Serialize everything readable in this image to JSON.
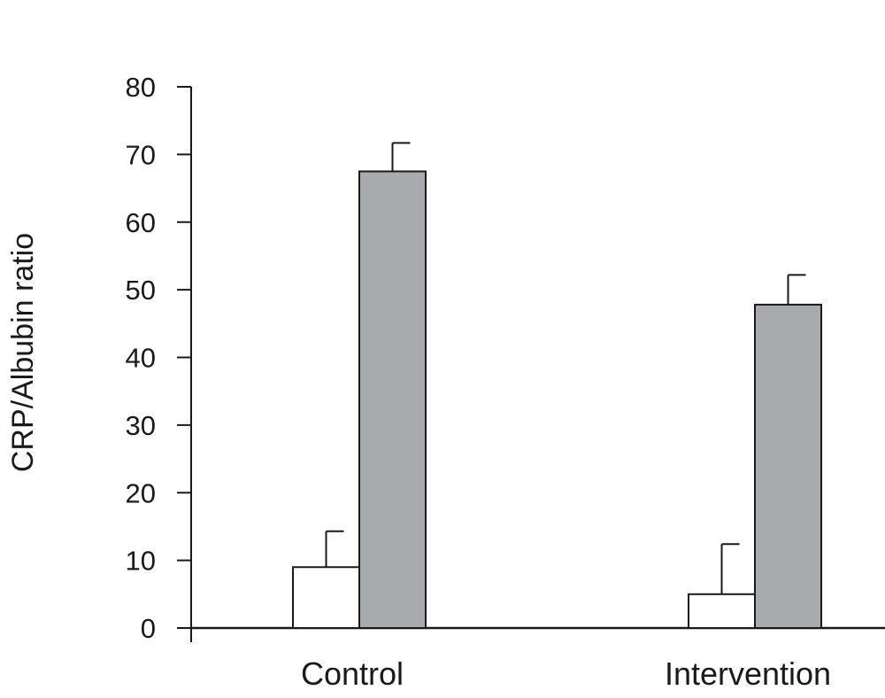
{
  "chart_data": {
    "type": "bar",
    "title": "",
    "xlabel": "",
    "ylabel": "CRP/Albubin ratio",
    "ylim": [
      0,
      80
    ],
    "yticks": [
      0,
      10,
      20,
      30,
      40,
      50,
      60,
      70,
      80
    ],
    "categories": [
      "Control",
      "Intervention"
    ],
    "grid": false,
    "legend": "none",
    "series": [
      {
        "color": "#ffffff",
        "values": [
          9,
          5
        ],
        "errors": [
          5.3,
          7.4
        ]
      },
      {
        "color": "#a9aaad",
        "values": [
          67.5,
          47.8
        ],
        "errors": [
          4.2,
          4.4
        ]
      }
    ]
  }
}
